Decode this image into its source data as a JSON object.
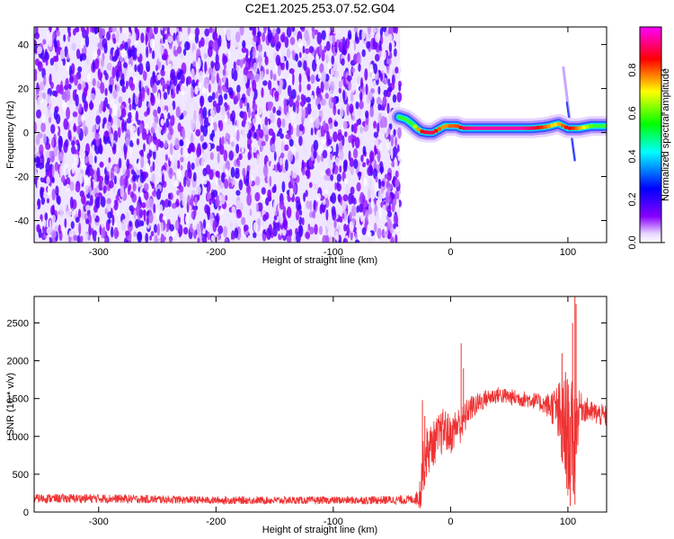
{
  "chart_data": [
    {
      "type": "heatmap",
      "title": "C2E1.2025.253.07.52.G04",
      "xlabel": "Height of straight line (km)",
      "ylabel": "Frequency (Hz)",
      "xlim": [
        -355,
        133
      ],
      "ylim": [
        -50,
        48
      ],
      "xticks": [
        -300,
        -200,
        -100,
        0,
        100
      ],
      "yticks": [
        -40,
        -20,
        0,
        20,
        40
      ],
      "colorbar": {
        "label": "Normalized spectral amplitude",
        "range": [
          0.0,
          1.0
        ],
        "ticks": [
          0.0,
          0.2,
          0.4,
          0.6,
          0.8
        ],
        "tick_labels": [
          "0.0",
          "0.2",
          "0.4",
          "0.6",
          "0.8"
        ],
        "colormap": [
          "#ff00ff",
          "#ff0000",
          "#ffff00",
          "#00ff00",
          "#00ffff",
          "#0000ff",
          "#8800ff",
          "#ffffff"
        ]
      },
      "noise_region": {
        "x_range": [
          -355,
          -43
        ],
        "freq_range": [
          -50,
          48
        ],
        "amplitude_range": [
          0.0,
          0.2
        ]
      },
      "ridge": {
        "x": [
          -44,
          -38,
          -33,
          -29,
          -25,
          -20,
          -15,
          -10,
          -5,
          0,
          5,
          10,
          20,
          40,
          60,
          70,
          80,
          85,
          88,
          92,
          96,
          100,
          102,
          106,
          110,
          120,
          133
        ],
        "frequency": [
          7,
          6,
          4,
          2,
          0.5,
          0,
          0,
          1.5,
          3,
          3,
          3,
          2,
          2,
          2,
          2,
          2,
          2.5,
          3,
          3.5,
          4,
          3,
          2,
          2,
          2,
          2,
          3,
          3
        ],
        "amplitude": [
          0.6,
          0.55,
          0.6,
          0.7,
          0.85,
          0.9,
          0.9,
          0.8,
          0.75,
          0.8,
          0.8,
          0.9,
          0.95,
          0.95,
          0.95,
          0.9,
          0.8,
          0.75,
          0.7,
          0.75,
          0.8,
          0.9,
          0.85,
          0.8,
          0.75,
          0.6,
          0.5
        ]
      },
      "streak": {
        "x": [
          96,
          106
        ],
        "frequency": [
          30,
          -13
        ]
      }
    },
    {
      "type": "line",
      "xlabel": "Height of straight line (km)",
      "ylabel": "SNR (10 * v/v)",
      "xlim": [
        -355,
        133
      ],
      "ylim": [
        0,
        2850
      ],
      "xticks": [
        -300,
        -200,
        -100,
        0,
        100
      ],
      "yticks": [
        0,
        500,
        1000,
        1500,
        2000,
        2500
      ],
      "color": "#ee3333",
      "series": [
        {
          "x": [
            -355,
            -300,
            -200,
            -100,
            -40,
            -30,
            -26,
            -24,
            -20,
            -15,
            -10,
            -5,
            0,
            5,
            10,
            15,
            20,
            30,
            40,
            50,
            60,
            70,
            80,
            90,
            95,
            100,
            105,
            110,
            120,
            133
          ],
          "mean": [
            180,
            180,
            155,
            155,
            160,
            170,
            250,
            550,
            800,
            900,
            1000,
            1100,
            1000,
            1150,
            1150,
            1350,
            1400,
            1500,
            1550,
            1520,
            1500,
            1480,
            1420,
            1380,
            1100,
            1000,
            900,
            1400,
            1320,
            1260
          ],
          "band": [
            60,
            60,
            50,
            50,
            60,
            60,
            250,
            350,
            350,
            300,
            300,
            300,
            250,
            250,
            250,
            180,
            160,
            120,
            110,
            110,
            110,
            110,
            120,
            300,
            700,
            800,
            800,
            200,
            150,
            150
          ]
        }
      ],
      "spikes": [
        {
          "x": -24,
          "y": 1480
        },
        {
          "x": -22,
          "y": 1270
        },
        {
          "x": 9,
          "y": 2230
        },
        {
          "x": 11,
          "y": 1900
        },
        {
          "x": 95,
          "y": 2100
        },
        {
          "x": 98,
          "y": 1850
        },
        {
          "x": 104,
          "y": 2500
        },
        {
          "x": 106,
          "y": 2850
        },
        {
          "x": 107,
          "y": 2750
        },
        {
          "x": 102,
          "y": 80
        },
        {
          "x": 106,
          "y": 100
        }
      ]
    }
  ]
}
